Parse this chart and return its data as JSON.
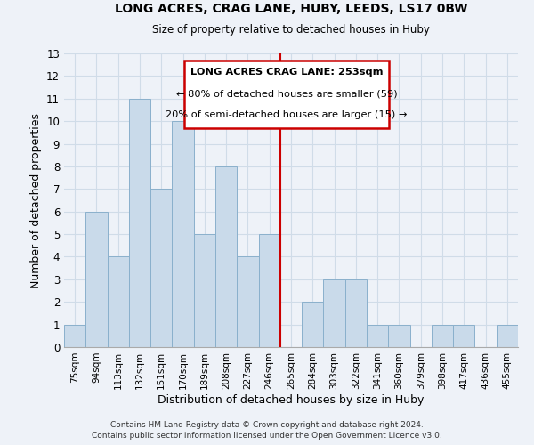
{
  "title": "LONG ACRES, CRAG LANE, HUBY, LEEDS, LS17 0BW",
  "subtitle": "Size of property relative to detached houses in Huby",
  "xlabel": "Distribution of detached houses by size in Huby",
  "ylabel": "Number of detached properties",
  "bar_labels": [
    "75sqm",
    "94sqm",
    "113sqm",
    "132sqm",
    "151sqm",
    "170sqm",
    "189sqm",
    "208sqm",
    "227sqm",
    "246sqm",
    "265sqm",
    "284sqm",
    "303sqm",
    "322sqm",
    "341sqm",
    "360sqm",
    "379sqm",
    "398sqm",
    "417sqm",
    "436sqm",
    "455sqm"
  ],
  "bar_values": [
    1,
    6,
    4,
    11,
    7,
    10,
    5,
    8,
    4,
    5,
    0,
    2,
    3,
    3,
    1,
    1,
    0,
    1,
    1,
    0,
    1
  ],
  "bar_color": "#c9daea",
  "bar_edgecolor": "#8ab0cc",
  "vline_index": 9,
  "annotation_title": "LONG ACRES CRAG LANE: 253sqm",
  "annotation_line1": "← 80% of detached houses are smaller (59)",
  "annotation_line2": "20% of semi-detached houses are larger (15) →",
  "annotation_box_color": "#ffffff",
  "annotation_box_edgecolor": "#cc0000",
  "vline_color": "#cc0000",
  "grid_color": "#d0dce8",
  "background_color": "#eef2f8",
  "footer_line1": "Contains HM Land Registry data © Crown copyright and database right 2024.",
  "footer_line2": "Contains public sector information licensed under the Open Government Licence v3.0.",
  "ylim": [
    0,
    13
  ],
  "yticks": [
    0,
    1,
    2,
    3,
    4,
    5,
    6,
    7,
    8,
    9,
    10,
    11,
    12,
    13
  ]
}
